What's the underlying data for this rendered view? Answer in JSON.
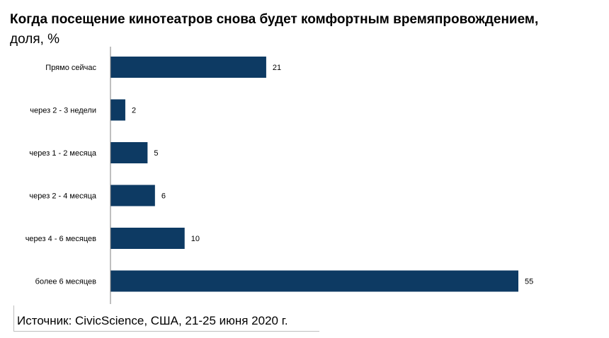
{
  "title": "Когда посещение кинотеатров снова будет комфортным времяпровождением,",
  "subtitle": "доля, %",
  "source": "Источник: CivicScience, США, 21-25 июня 2020 г.",
  "colors": {
    "bar": "#0d3a63",
    "axis": "#7f7f7f"
  },
  "chart_data": {
    "type": "bar",
    "orientation": "horizontal",
    "title": "Когда посещение кинотеатров снова будет комфортным времяпровождением,",
    "subtitle": "доля, %",
    "categories": [
      "Прямо сейчас",
      "через 2 - 3 недели",
      "через 1 - 2 месяца",
      "через 2 - 4 месяца",
      "через 4 - 6 месяцев",
      "более 6 месяцев"
    ],
    "values": [
      21,
      2,
      5,
      6,
      10,
      55
    ],
    "xlim": [
      0,
      60
    ],
    "grid": false,
    "legend": "none"
  }
}
